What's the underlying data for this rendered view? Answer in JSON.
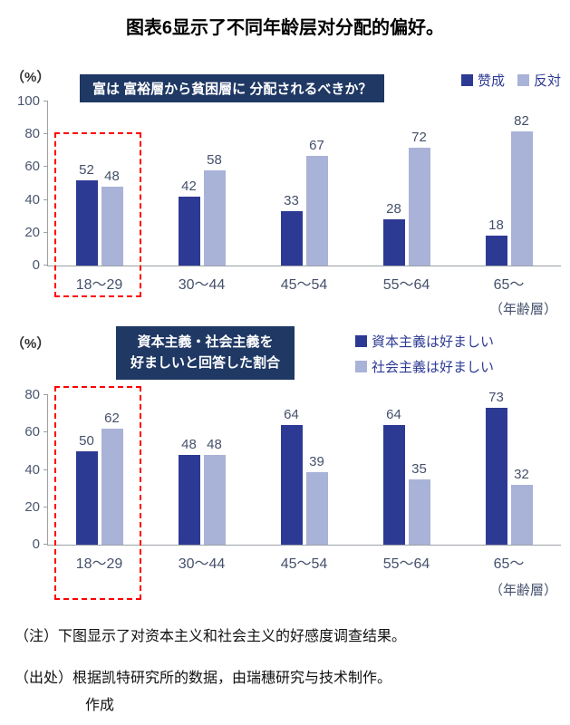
{
  "page": {
    "title": "图表6显示了不同年龄层对分配的偏好。",
    "notes": {
      "note1": "（注）下图显示了对资本主义和社会主义的好感度调查结果。",
      "note2": "（出处）根据凯特研究所的数据，由瑞穗研究与技术制作。",
      "note3": "作成"
    }
  },
  "colors": {
    "series_dark": "#2d3a94",
    "series_light": "#a9b3d8",
    "title_box_bg": "#1f3864",
    "highlight_red": "#ff0000",
    "axis_gray": "#9aa0a6"
  },
  "chart_data": [
    {
      "type": "bar",
      "title_box": "富は 富裕層から貧困層に 分配されるべきか？",
      "unit_label": "（%）",
      "axis_note": "（年齢層）",
      "categories": [
        "18～29",
        "30～44",
        "45～54",
        "55～64",
        "65～"
      ],
      "series": [
        {
          "name": "赞成",
          "color": "#2d3a94",
          "values": [
            52,
            42,
            33,
            28,
            18
          ]
        },
        {
          "name": "反対",
          "color": "#a9b3d8",
          "values": [
            48,
            58,
            67,
            72,
            82
          ]
        }
      ],
      "yticks": [
        0,
        20,
        40,
        60,
        80,
        100
      ],
      "ylim": [
        0,
        100
      ],
      "grid": false,
      "legend_position": "top-right",
      "highlight": {
        "category": "18～29",
        "style": "red-dashed-box"
      }
    },
    {
      "type": "bar",
      "title_box_lines": [
        "資本主義・社会主義を",
        "好ましいと回答した割合"
      ],
      "unit_label": "（%）",
      "axis_note": "（年齢層）",
      "categories": [
        "18～29",
        "30～44",
        "45～54",
        "55～64",
        "65～"
      ],
      "series": [
        {
          "name": "資本主義は好ましい",
          "color": "#2d3a94",
          "values": [
            50,
            48,
            64,
            64,
            73
          ]
        },
        {
          "name": "社会主義は好ましい",
          "color": "#a9b3d8",
          "values": [
            62,
            48,
            39,
            35,
            32
          ]
        }
      ],
      "yticks": [
        0,
        20,
        40,
        60,
        80
      ],
      "ylim": [
        0,
        80
      ],
      "grid": false,
      "legend_position": "top-right",
      "highlight": {
        "category": "18～29",
        "style": "red-dashed-box"
      }
    }
  ]
}
